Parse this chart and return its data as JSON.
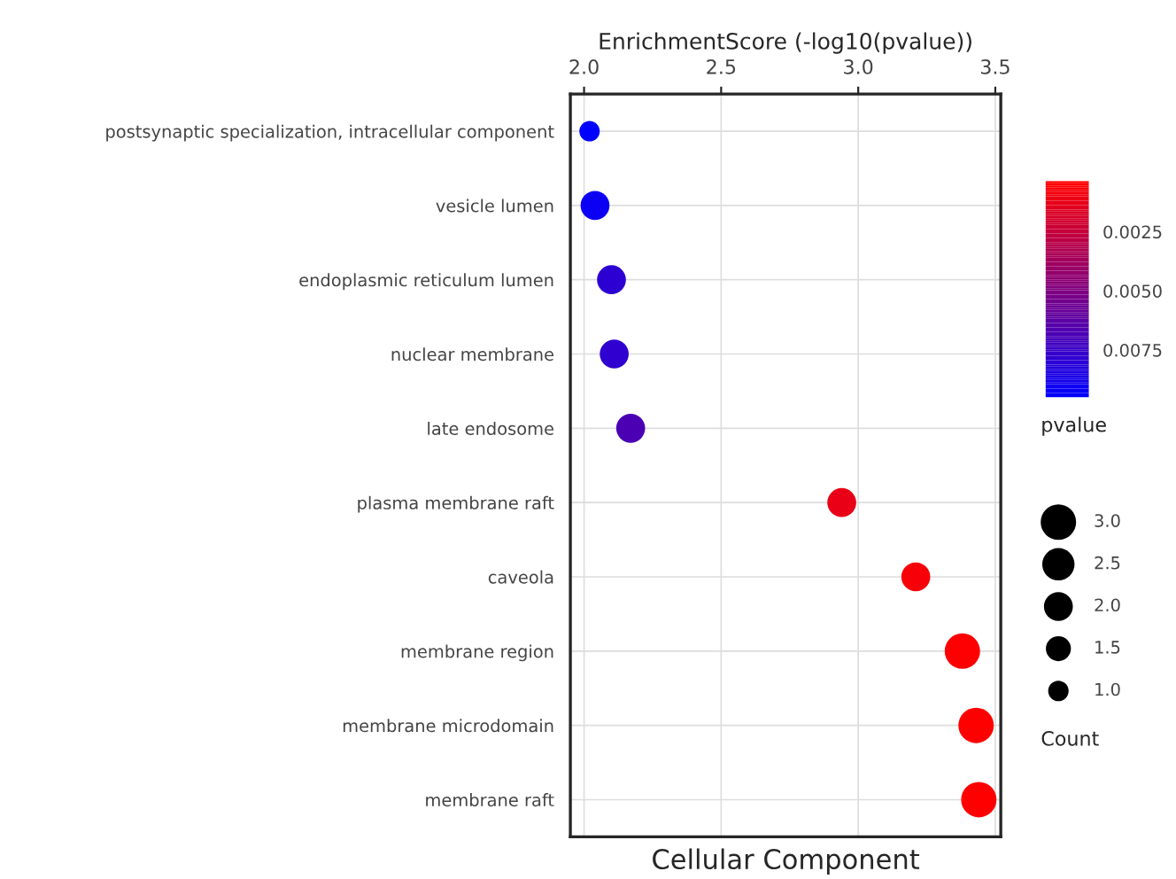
{
  "chart_data": {
    "type": "bubble",
    "title": "Cellular Component",
    "xlabel": "EnrichmentScore (-log10(pvalue))",
    "legend_title": "Count",
    "clabel": "pvalue",
    "categories": [
      "postsynaptic specialization, intracellular component",
      "vesicle lumen",
      "endoplasmic reticulum lumen",
      "nuclear membrane",
      "late endosome",
      "plasma membrane raft",
      "caveola",
      "membrane region",
      "membrane microdomain",
      "membrane raft"
    ],
    "values": [
      2.02,
      2.04,
      2.1,
      2.11,
      2.17,
      2.94,
      3.21,
      3.38,
      3.43,
      3.44
    ],
    "sizes": [
      1,
      2,
      2,
      2,
      2,
      2,
      2,
      3,
      3,
      3
    ],
    "cvalues": [
      0.0095,
      0.0091,
      0.0079,
      0.0078,
      0.0068,
      0.00115,
      0.00062,
      0.00042,
      0.00037,
      0.00036
    ],
    "size_legend": [
      {
        "value": 3,
        "label": "3.0"
      },
      {
        "value": 2.5,
        "label": "2.5"
      },
      {
        "value": 2,
        "label": "2.0"
      },
      {
        "value": 1.5,
        "label": "1.5"
      },
      {
        "value": 1,
        "label": "1.0"
      }
    ],
    "orientation": "horizontal",
    "clim": [
      0.0095,
      0.00036
    ],
    "cticks": [
      {
        "value": 0.0025,
        "label": "0.0025"
      },
      {
        "value": 0.005,
        "label": "0.0050"
      },
      {
        "value": 0.0075,
        "label": "0.0075"
      }
    ],
    "colors": [
      "#0000ff",
      "#0b00f4",
      "#2d00d2",
      "#2f00cf",
      "#4b00b4",
      "#e90016",
      "#f80007",
      "#fd0002",
      "#ff0000",
      "#ff0000"
    ],
    "xlim": [
      1.95,
      3.52
    ],
    "xticks": [
      {
        "value": 2,
        "label": "2.0"
      },
      {
        "value": 2.5,
        "label": "2.5"
      },
      {
        "value": 3,
        "label": "3.0"
      },
      {
        "value": 3.5,
        "label": "3.5"
      }
    ],
    "grid": true
  }
}
